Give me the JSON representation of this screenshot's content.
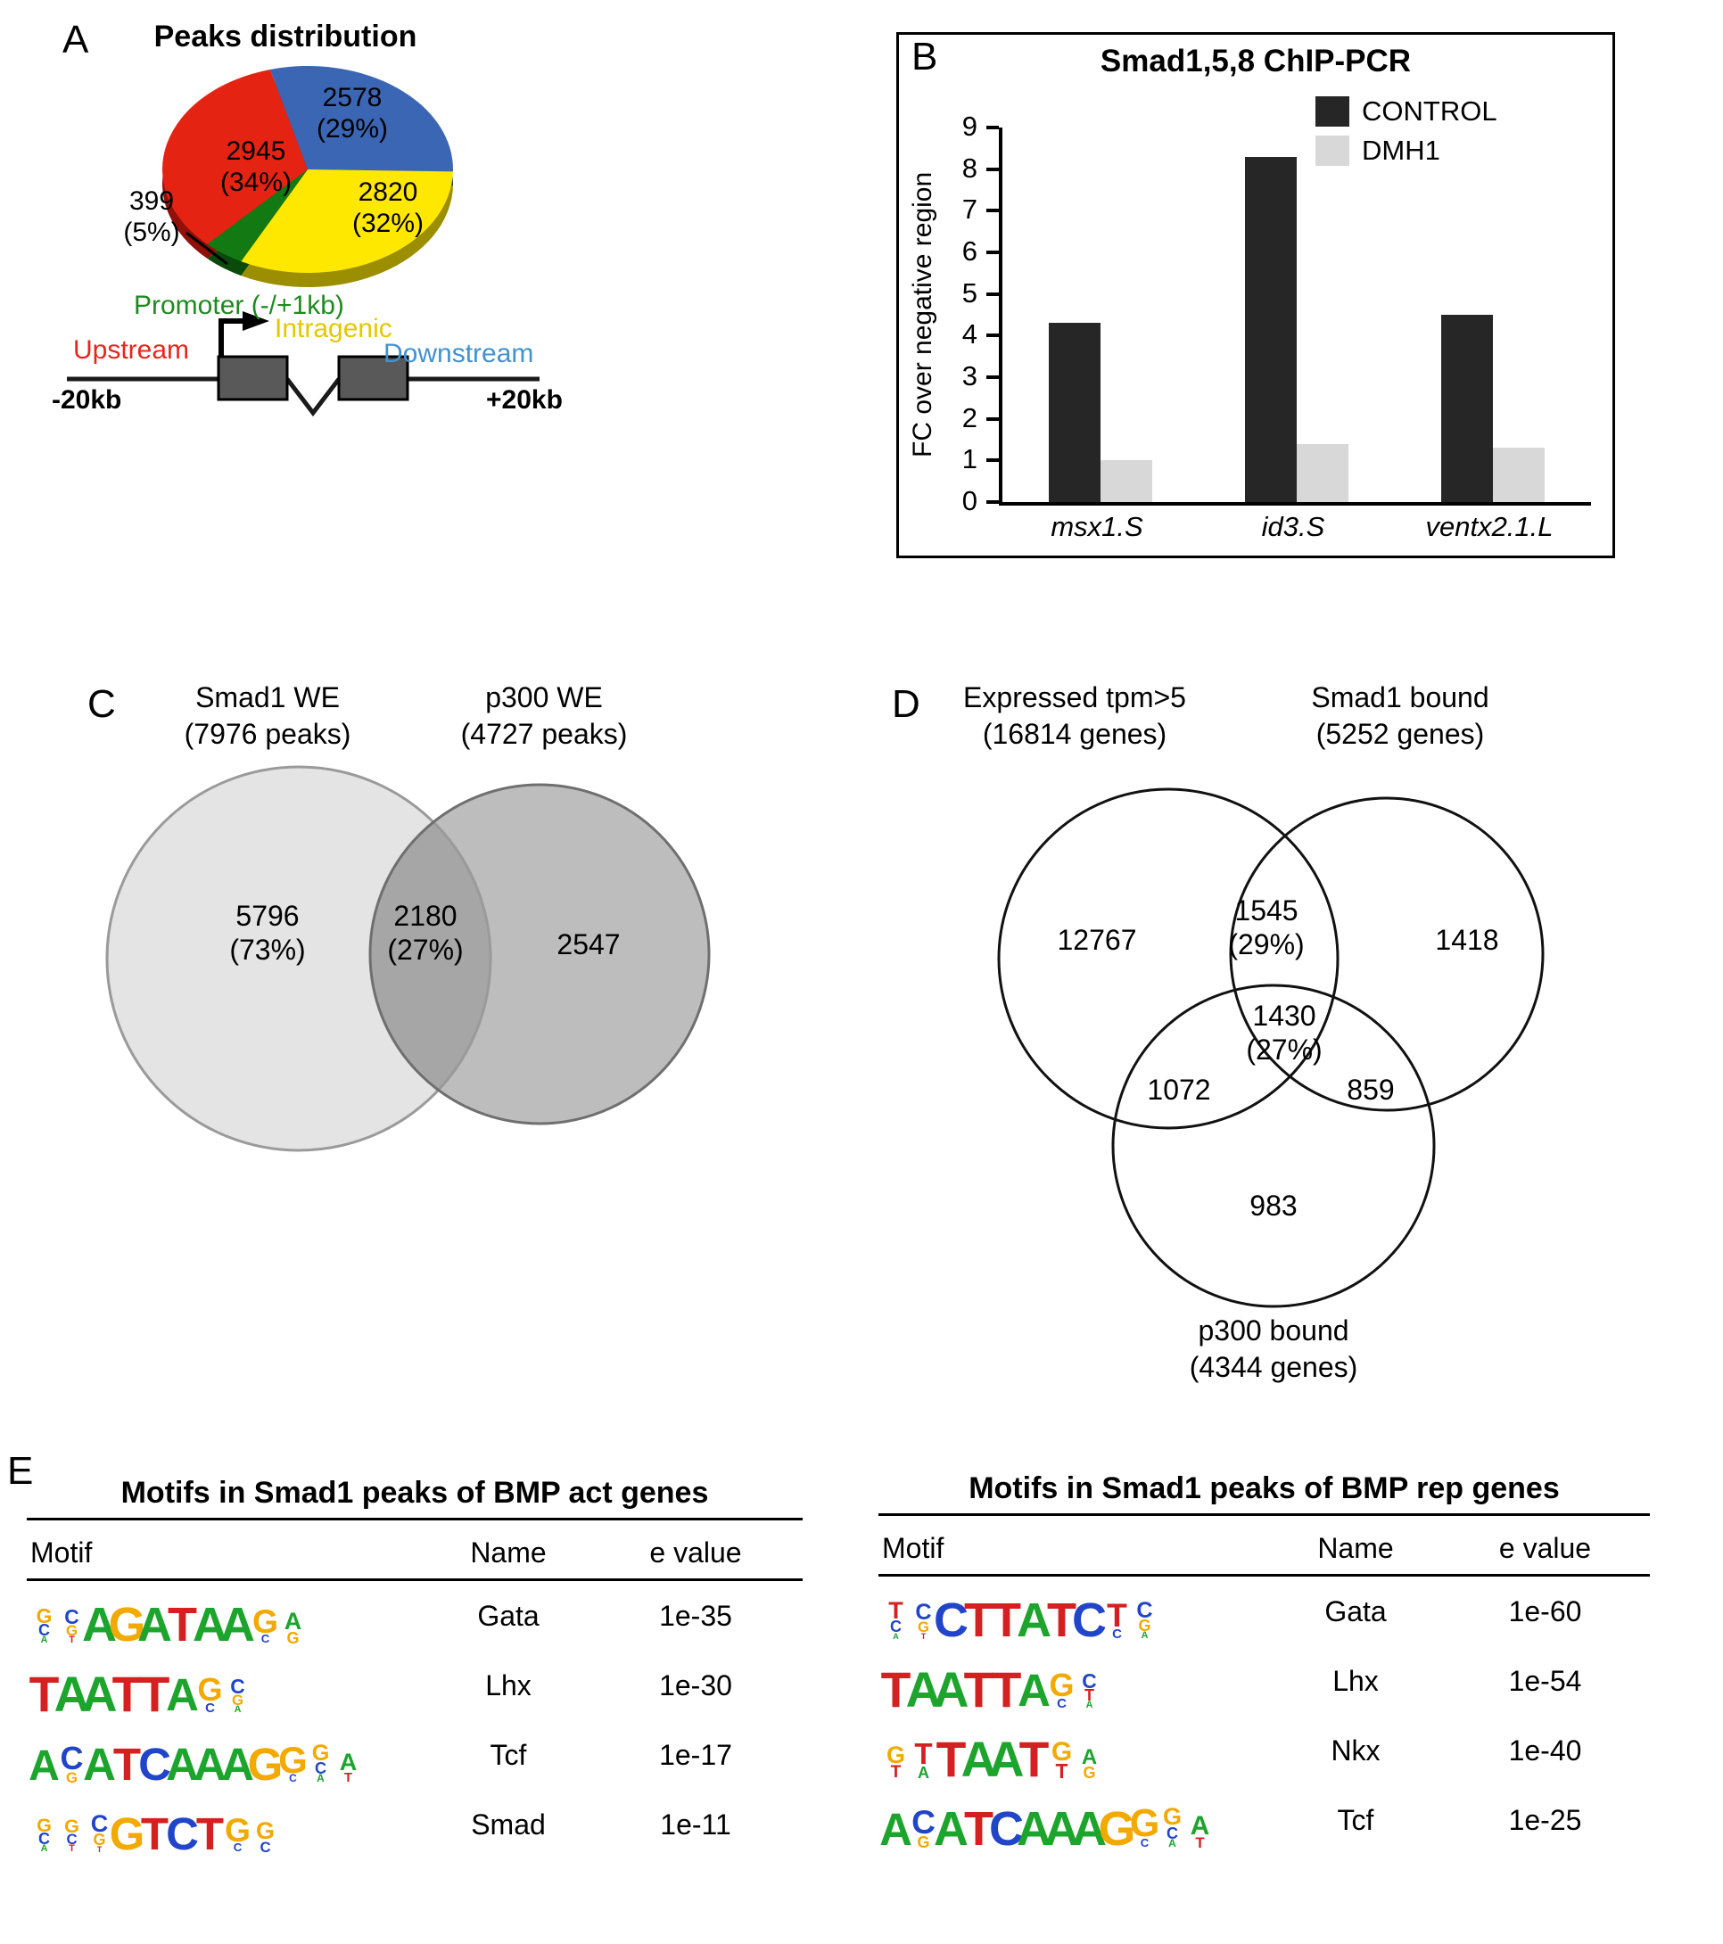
{
  "panels": {
    "a": {
      "label": "A",
      "title": "Peaks distribution",
      "diagram": {
        "promoter_label": "Promoter (-/+1kb)",
        "intragenic_label": "Intragenic",
        "upstream_label": "Upstream",
        "downstream_label": "Downstream",
        "left_scale": "-20kb",
        "right_scale": "+20kb",
        "promoter_color": "#1E8A1E",
        "intragenic_color": "#E3C800",
        "upstream_color": "#E6261C",
        "downstream_color": "#4292CE"
      }
    },
    "b": {
      "label": "B",
      "title": "Smad1,5,8 ChIP-PCR",
      "ylabel": "FC over negative region",
      "legend": [
        {
          "label": "CONTROL",
          "color": "#262626"
        },
        {
          "label": "DMH1",
          "color": "#d8d8d8"
        }
      ]
    },
    "c": {
      "label": "C",
      "set1_title": "Smad1 WE",
      "set1_subtitle": "(7976 peaks)",
      "set2_title": "p300 WE",
      "set2_subtitle": "(4727 peaks)"
    },
    "d": {
      "label": "D",
      "set1_title": "Expressed tpm>5",
      "set1_subtitle": "(16814 genes)",
      "set2_title": "Smad1 bound",
      "set2_subtitle": "(5252 genes)",
      "set3_title": "p300 bound",
      "set3_subtitle": "(4344 genes)"
    },
    "e": {
      "label": "E",
      "tables": [
        {
          "title": "Motifs in Smad1 peaks of BMP act genes",
          "headers": [
            "Motif",
            "Name",
            "e value"
          ],
          "rows": [
            {
              "name": "Gata",
              "evalue": "1e-35",
              "logo": [
                [
                  [
                    "G",
                    0.38
                  ],
                  [
                    "C",
                    0.3
                  ],
                  [
                    "A",
                    0.18
                  ]
                ],
                [
                  [
                    "C",
                    0.38
                  ],
                  [
                    "G",
                    0.28
                  ],
                  [
                    "T",
                    0.18
                  ]
                ],
                [
                  [
                    "A",
                    0.9
                  ]
                ],
                [
                  [
                    "G",
                    0.9
                  ]
                ],
                [
                  [
                    "A",
                    0.9
                  ]
                ],
                [
                  [
                    "T",
                    0.9
                  ]
                ],
                [
                  [
                    "A",
                    0.9
                  ]
                ],
                [
                  [
                    "A",
                    0.9
                  ]
                ],
                [
                  [
                    "G",
                    0.62
                  ],
                  [
                    "C",
                    0.22
                  ]
                ],
                [
                  [
                    "A",
                    0.45
                  ],
                  [
                    "G",
                    0.3
                  ]
                ]
              ]
            },
            {
              "name": "Lhx",
              "evalue": "1e-30",
              "logo": [
                [
                  [
                    "T",
                    0.92
                  ]
                ],
                [
                  [
                    "A",
                    0.92
                  ]
                ],
                [
                  [
                    "A",
                    0.92
                  ]
                ],
                [
                  [
                    "T",
                    0.92
                  ]
                ],
                [
                  [
                    "T",
                    0.92
                  ]
                ],
                [
                  [
                    "A",
                    0.85
                  ]
                ],
                [
                  [
                    "G",
                    0.6
                  ],
                  [
                    "C",
                    0.25
                  ]
                ],
                [
                  [
                    "C",
                    0.38
                  ],
                  [
                    "G",
                    0.28
                  ],
                  [
                    "A",
                    0.18
                  ]
                ]
              ]
            },
            {
              "name": "Tcf",
              "evalue": "1e-17",
              "logo": [
                [
                  [
                    "A",
                    0.8
                  ]
                ],
                [
                  [
                    "C",
                    0.6
                  ],
                  [
                    "G",
                    0.28
                  ]
                ],
                [
                  [
                    "A",
                    0.85
                  ]
                ],
                [
                  [
                    "T",
                    0.85
                  ]
                ],
                [
                  [
                    "C",
                    0.85
                  ]
                ],
                [
                  [
                    "A",
                    0.85
                  ]
                ],
                [
                  [
                    "A",
                    0.85
                  ]
                ],
                [
                  [
                    "A",
                    0.85
                  ]
                ],
                [
                  [
                    "G",
                    0.85
                  ]
                ],
                [
                  [
                    "G",
                    0.7
                  ],
                  [
                    "C",
                    0.2
                  ]
                ],
                [
                  [
                    "G",
                    0.42
                  ],
                  [
                    "C",
                    0.3
                  ],
                  [
                    "A",
                    0.2
                  ]
                ],
                [
                  [
                    "A",
                    0.45
                  ],
                  [
                    "T",
                    0.25
                  ]
                ]
              ]
            },
            {
              "name": "Smad",
              "evalue": "1e-11",
              "logo": [
                [
                  [
                    "G",
                    0.36
                  ],
                  [
                    "C",
                    0.3
                  ],
                  [
                    "A",
                    0.18
                  ]
                ],
                [
                  [
                    "G",
                    0.36
                  ],
                  [
                    "C",
                    0.28
                  ],
                  [
                    "T",
                    0.18
                  ]
                ],
                [
                  [
                    "C",
                    0.45
                  ],
                  [
                    "G",
                    0.3
                  ],
                  [
                    "T",
                    0.15
                  ]
                ],
                [
                  [
                    "G",
                    0.85
                  ]
                ],
                [
                  [
                    "T",
                    0.85
                  ]
                ],
                [
                  [
                    "C",
                    0.85
                  ]
                ],
                [
                  [
                    "T",
                    0.85
                  ]
                ],
                [
                  [
                    "G",
                    0.62
                  ],
                  [
                    "C",
                    0.22
                  ]
                ],
                [
                  [
                    "G",
                    0.45
                  ],
                  [
                    "C",
                    0.28
                  ]
                ]
              ]
            }
          ]
        },
        {
          "title": "Motifs in Smad1 peaks of BMP rep genes",
          "headers": [
            "Motif",
            "Name",
            "e value"
          ],
          "rows": [
            {
              "name": "Gata",
              "evalue": "1e-60",
              "logo": [
                [
                  [
                    "T",
                    0.45
                  ],
                  [
                    "C",
                    0.3
                  ],
                  [
                    "A",
                    0.15
                  ]
                ],
                [
                  [
                    "C",
                    0.42
                  ],
                  [
                    "G",
                    0.28
                  ],
                  [
                    "T",
                    0.15
                  ]
                ],
                [
                  [
                    "C",
                    0.9
                  ]
                ],
                [
                  [
                    "T",
                    0.9
                  ]
                ],
                [
                  [
                    "T",
                    0.9
                  ]
                ],
                [
                  [
                    "A",
                    0.9
                  ]
                ],
                [
                  [
                    "T",
                    0.9
                  ]
                ],
                [
                  [
                    "C",
                    0.9
                  ]
                ],
                [
                  [
                    "T",
                    0.62
                  ],
                  [
                    "C",
                    0.25
                  ]
                ],
                [
                  [
                    "C",
                    0.42
                  ],
                  [
                    "G",
                    0.3
                  ],
                  [
                    "A",
                    0.18
                  ]
                ]
              ]
            },
            {
              "name": "Lhx",
              "evalue": "1e-54",
              "logo": [
                [
                  [
                    "T",
                    0.92
                  ]
                ],
                [
                  [
                    "A",
                    0.92
                  ]
                ],
                [
                  [
                    "A",
                    0.92
                  ]
                ],
                [
                  [
                    "T",
                    0.92
                  ]
                ],
                [
                  [
                    "T",
                    0.92
                  ]
                ],
                [
                  [
                    "A",
                    0.85
                  ]
                ],
                [
                  [
                    "G",
                    0.6
                  ],
                  [
                    "C",
                    0.25
                  ]
                ],
                [
                  [
                    "C",
                    0.38
                  ],
                  [
                    "T",
                    0.3
                  ],
                  [
                    "A",
                    0.18
                  ]
                ]
              ]
            },
            {
              "name": "Nkx",
              "evalue": "1e-40",
              "logo": [
                [
                  [
                    "G",
                    0.45
                  ],
                  [
                    "T",
                    0.32
                  ]
                ],
                [
                  [
                    "T",
                    0.55
                  ],
                  [
                    "A",
                    0.3
                  ]
                ],
                [
                  [
                    "T",
                    0.92
                  ]
                ],
                [
                  [
                    "A",
                    0.92
                  ]
                ],
                [
                  [
                    "A",
                    0.92
                  ]
                ],
                [
                  [
                    "T",
                    0.92
                  ]
                ],
                [
                  [
                    "G",
                    0.5
                  ],
                  [
                    "T",
                    0.38
                  ]
                ],
                [
                  [
                    "A",
                    0.4
                  ],
                  [
                    "G",
                    0.3
                  ]
                ]
              ]
            },
            {
              "name": "Tcf",
              "evalue": "1e-25",
              "logo": [
                [
                  [
                    "A",
                    0.85
                  ]
                ],
                [
                  [
                    "C",
                    0.62
                  ],
                  [
                    "G",
                    0.3
                  ]
                ],
                [
                  [
                    "A",
                    0.9
                  ]
                ],
                [
                  [
                    "T",
                    0.9
                  ]
                ],
                [
                  [
                    "C",
                    0.9
                  ]
                ],
                [
                  [
                    "A",
                    0.9
                  ]
                ],
                [
                  [
                    "A",
                    0.9
                  ]
                ],
                [
                  [
                    "A",
                    0.9
                  ]
                ],
                [
                  [
                    "G",
                    0.9
                  ]
                ],
                [
                  [
                    "G",
                    0.72
                  ],
                  [
                    "C",
                    0.22
                  ]
                ],
                [
                  [
                    "G",
                    0.45
                  ],
                  [
                    "C",
                    0.3
                  ],
                  [
                    "A",
                    0.2
                  ]
                ],
                [
                  [
                    "A",
                    0.5
                  ],
                  [
                    "T",
                    0.28
                  ]
                ]
              ]
            }
          ]
        }
      ]
    }
  },
  "chart_data": [
    {
      "id": "peaks_distribution_pie",
      "type": "pie",
      "title": "Peaks distribution",
      "labels": [
        "Downstream",
        "Intragenic",
        "Promoter (-/+1kb)",
        "Upstream"
      ],
      "values": [
        2578,
        2820,
        399,
        2945
      ],
      "pct_labels": [
        "(29%)",
        "(32%)",
        "(5%)",
        "(34%)"
      ],
      "colors": [
        "#3A66B4",
        "#FFE800",
        "#137A13",
        "#E42313"
      ],
      "depth_colors": [
        "#24407A",
        "#9B8E00",
        "#0A4A0A",
        "#911009"
      ],
      "start_angle": -105
    },
    {
      "id": "chip_pcr_bar",
      "type": "bar",
      "title": "Smad1,5,8 ChIP-PCR",
      "categories": [
        "msx1.S",
        "id3.S",
        "ventx2.1.L"
      ],
      "series": [
        {
          "name": "CONTROL",
          "color": "#262626",
          "values": [
            4.3,
            8.3,
            4.5
          ]
        },
        {
          "name": "DMH1",
          "color": "#d8d8d8",
          "values": [
            1.0,
            1.4,
            1.3
          ]
        }
      ],
      "ylabel": "FC over negative region",
      "ylim": [
        0,
        9
      ],
      "yticks": [
        0,
        1,
        2,
        3,
        4,
        5,
        6,
        7,
        8,
        9
      ],
      "legend_position": "top-right",
      "grid": false
    },
    {
      "id": "smad1_p300_overlap_venn",
      "type": "venn",
      "sets": [
        "Smad1 WE (7976 peaks)",
        "p300 WE (4727 peaks)"
      ],
      "regions": {
        "set1_only": 5796,
        "set1_only_pct": "(73%)",
        "overlap": 2180,
        "overlap_pct": "(27%)",
        "set2_only": 2547
      }
    },
    {
      "id": "expressed_smad1_p300_venn",
      "type": "venn",
      "sets": [
        "Expressed tpm>5 (16814 genes)",
        "Smad1 bound (5252 genes)",
        "p300 bound (4344 genes)"
      ],
      "regions": {
        "set1_only": 12767,
        "set1_set2": 1545,
        "set1_set2_pct": "(29%)",
        "set2_only": 1418,
        "center": 1430,
        "center_pct": "(27%)",
        "set1_set3": 1072,
        "set2_set3": 859,
        "set3_only": 983
      }
    }
  ],
  "letter_colors": {
    "A": "#1CA42C",
    "C": "#2045C8",
    "G": "#F2A900",
    "T": "#D42020"
  }
}
